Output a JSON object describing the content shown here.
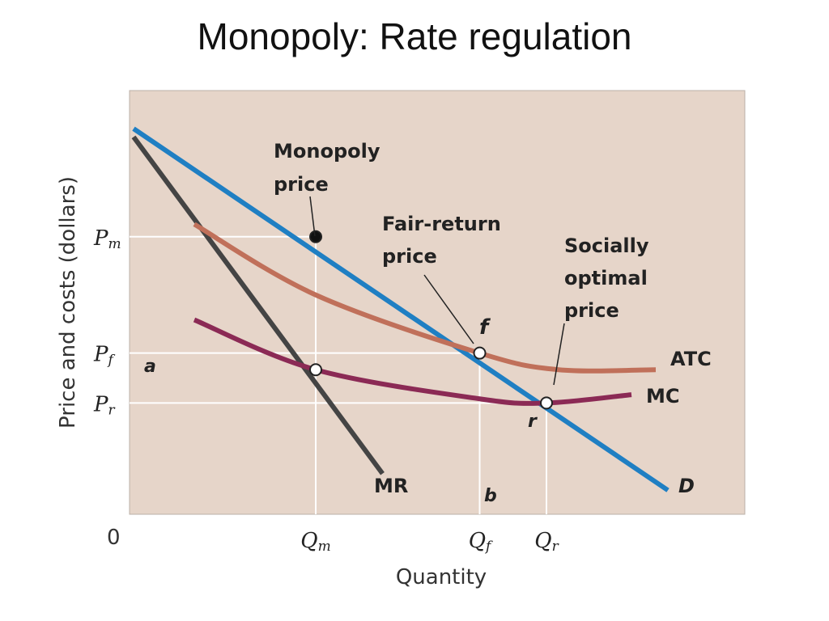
{
  "slide": {
    "title": "Monopoly: Rate regulation"
  },
  "chart_data": {
    "type": "line",
    "ylabel": "Price and costs (dollars)",
    "xlabel": "Quantity",
    "origin_label": "0",
    "grid": false,
    "xlim": [
      0,
      100
    ],
    "ylim": [
      0,
      100
    ],
    "x_ticks": [
      {
        "label": "Q",
        "sub": "m",
        "value": 30
      },
      {
        "label": "Q",
        "sub": "f",
        "value": 57
      },
      {
        "label": "Q",
        "sub": "r",
        "value": 68
      }
    ],
    "y_ticks": [
      {
        "label": "P",
        "sub": "m",
        "value": 66
      },
      {
        "label": "P",
        "sub": "f",
        "value": 38
      },
      {
        "label": "P",
        "sub": "r",
        "value": 26
      }
    ],
    "series": [
      {
        "name": "D",
        "color": "#1f7fc3",
        "x": [
          0,
          30,
          57,
          68,
          88
        ],
        "y": [
          92,
          66,
          38,
          26,
          5
        ]
      },
      {
        "name": "MR",
        "color": "#444444",
        "x": [
          0,
          15,
          30,
          41
        ],
        "y": [
          90,
          60,
          32,
          9
        ]
      },
      {
        "name": "ATC",
        "color": "#c0705a",
        "x": [
          10,
          30,
          57,
          70,
          86
        ],
        "y": [
          69,
          52,
          38,
          34,
          34
        ]
      },
      {
        "name": "MC",
        "color": "#8b2a55",
        "x": [
          10,
          30,
          57,
          68,
          82
        ],
        "y": [
          46,
          34,
          27,
          26,
          28
        ]
      }
    ],
    "points": [
      {
        "label": "Monopoly price",
        "x": 30,
        "y": 66,
        "filled": true
      },
      {
        "label": "f",
        "x": 57,
        "y": 38,
        "filled": false
      },
      {
        "label": "r",
        "x": 68,
        "y": 26,
        "filled": false
      },
      {
        "label": "a",
        "x": 30,
        "y": 34,
        "filled": false
      }
    ],
    "annotations": {
      "monopoly_line1": "Monopoly",
      "monopoly_line2": "price",
      "fair_line1": "Fair-return",
      "fair_line2": "price",
      "social_line1": "Socially",
      "social_line2": "optimal",
      "social_line3": "price",
      "label_a": "a",
      "label_b": "b",
      "label_f": "f",
      "label_r": "r"
    },
    "colors": {
      "plot_background": "#e6d5c9"
    }
  }
}
